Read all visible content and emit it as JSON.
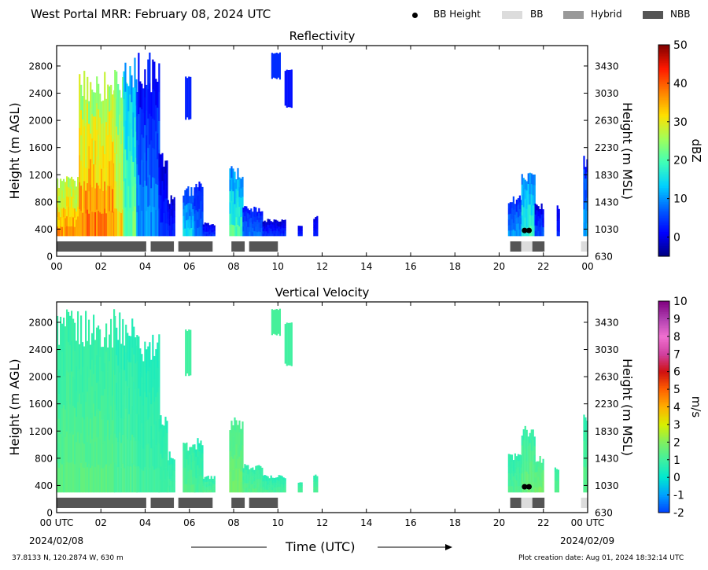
{
  "figure_title": "West Portal MRR:  February 08, 2024 UTC",
  "legend": [
    {
      "label": "BB Height",
      "marker": "dot",
      "color": "#000000"
    },
    {
      "label": "BB",
      "marker": "box",
      "color": "#dcdcdc"
    },
    {
      "label": "Hybrid",
      "marker": "box",
      "color": "#999999"
    },
    {
      "label": "NBB",
      "marker": "box",
      "color": "#555555"
    }
  ],
  "footer": {
    "location": "37.8133 N, 120.2874 W, 630 m",
    "creation": "Plot creation date: Aug 01, 2024 18:32:14 UTC",
    "time_axis_label": "Time (UTC)",
    "start_date": "2024/02/08",
    "end_date": "2024/02/09"
  },
  "chart_data": [
    {
      "type": "heatmap",
      "title": "Reflectivity",
      "ylabel": "Height (m AGL)",
      "y2label": "Height (m MSL)",
      "colorbar_label": "dBZ",
      "x_ticks": [
        "00",
        "02",
        "04",
        "06",
        "08",
        "10",
        "12",
        "14",
        "16",
        "18",
        "20",
        "22",
        "00"
      ],
      "xlim_hours": [
        0,
        24
      ],
      "y_ticks": [
        0,
        400,
        800,
        1200,
        1600,
        2000,
        2400,
        2800
      ],
      "y2_ticks": [
        630,
        1030,
        1430,
        1830,
        2230,
        2630,
        3030,
        3430
      ],
      "ylim": [
        0,
        3100
      ],
      "colorbar_ticks": [
        0,
        10,
        20,
        30,
        40,
        50
      ],
      "colorbar_range": [
        -5,
        50
      ],
      "colormap": [
        "#00007f",
        "#0000ff",
        "#0060ff",
        "#00d0ff",
        "#40ffb8",
        "#a0ff5a",
        "#ffe000",
        "#ff8000",
        "#ff1800",
        "#7f0000"
      ],
      "echo_regions": [
        {
          "start_h": 0.0,
          "end_h": 1.0,
          "top_m": 1180,
          "dbz_low": 26,
          "dbz_high": 36
        },
        {
          "start_h": 1.0,
          "end_h": 2.6,
          "top_m": 2780,
          "dbz_low": 26,
          "dbz_high": 38
        },
        {
          "start_h": 2.6,
          "end_h": 3.1,
          "top_m": 2780,
          "dbz_low": 22,
          "dbz_high": 32
        },
        {
          "start_h": 3.0,
          "end_h": 3.6,
          "top_m": 3000,
          "dbz_low": 12,
          "dbz_high": 22
        },
        {
          "start_h": 3.6,
          "end_h": 4.6,
          "top_m": 3000,
          "dbz_low": 2,
          "dbz_high": 10
        },
        {
          "start_h": 4.6,
          "end_h": 5.0,
          "top_m": 1550,
          "dbz_low": -1,
          "dbz_high": 4
        },
        {
          "start_h": 5.0,
          "end_h": 5.3,
          "top_m": 900,
          "dbz_low": -1,
          "dbz_high": 3
        },
        {
          "start_h": 5.7,
          "end_h": 6.2,
          "top_m": 1050,
          "dbz_low": 6,
          "dbz_high": 14
        },
        {
          "start_h": 6.2,
          "end_h": 6.6,
          "top_m": 1100,
          "dbz_low": 3,
          "dbz_high": 8
        },
        {
          "start_h": 6.6,
          "end_h": 7.1,
          "top_m": 500,
          "dbz_low": 0,
          "dbz_high": 4
        },
        {
          "start_h": 7.8,
          "end_h": 8.4,
          "top_m": 1350,
          "dbz_low": 10,
          "dbz_high": 20
        },
        {
          "start_h": 8.4,
          "end_h": 9.3,
          "top_m": 750,
          "dbz_low": 3,
          "dbz_high": 8
        },
        {
          "start_h": 9.3,
          "end_h": 10.3,
          "top_m": 560,
          "dbz_low": -1,
          "dbz_high": 4
        },
        {
          "start_h": 10.9,
          "end_h": 11.1,
          "top_m": 460,
          "dbz_low": 0,
          "dbz_high": 3
        },
        {
          "start_h": 11.6,
          "end_h": 11.75,
          "top_m": 600,
          "dbz_low": 0,
          "dbz_high": 3
        },
        {
          "start_h": 20.4,
          "end_h": 21.0,
          "top_m": 900,
          "dbz_low": 4,
          "dbz_high": 10
        },
        {
          "start_h": 21.0,
          "end_h": 21.6,
          "top_m": 1300,
          "dbz_low": 10,
          "dbz_high": 18
        },
        {
          "start_h": 21.6,
          "end_h": 22.0,
          "top_m": 800,
          "dbz_low": 0,
          "dbz_high": 6
        },
        {
          "start_h": 22.6,
          "end_h": 22.7,
          "top_m": 800,
          "dbz_low": 0,
          "dbz_high": 3
        },
        {
          "start_h": 23.8,
          "end_h": 24.0,
          "top_m": 1500,
          "dbz_low": 4,
          "dbz_high": 12
        }
      ],
      "upper_echoes": [
        {
          "start_h": 5.8,
          "end_h": 6.05,
          "bottom_m": 2000,
          "top_m": 2650,
          "dbz": 3
        },
        {
          "start_h": 9.7,
          "end_h": 10.1,
          "bottom_m": 2600,
          "top_m": 3000,
          "dbz": 4
        },
        {
          "start_h": 10.3,
          "end_h": 10.6,
          "bottom_m": 2180,
          "top_m": 2750,
          "dbz": 2
        }
      ],
      "bb_height_points": [
        {
          "hour": 21.15,
          "height_m": 380
        },
        {
          "hour": 21.35,
          "height_m": 380
        }
      ],
      "bb_class_segments": [
        {
          "start_h": 0.0,
          "end_h": 4.05,
          "class": "NBB"
        },
        {
          "start_h": 4.25,
          "end_h": 5.3,
          "class": "NBB"
        },
        {
          "start_h": 5.5,
          "end_h": 7.05,
          "class": "NBB"
        },
        {
          "start_h": 7.9,
          "end_h": 8.5,
          "class": "NBB"
        },
        {
          "start_h": 8.7,
          "end_h": 10.0,
          "class": "NBB"
        },
        {
          "start_h": 20.5,
          "end_h": 21.0,
          "class": "NBB"
        },
        {
          "start_h": 21.0,
          "end_h": 21.5,
          "class": "BB"
        },
        {
          "start_h": 21.5,
          "end_h": 22.05,
          "class": "NBB"
        },
        {
          "start_h": 23.7,
          "end_h": 24.0,
          "class": "BB"
        }
      ]
    },
    {
      "type": "heatmap",
      "title": "Vertical Velocity",
      "ylabel": "Height (m AGL)",
      "y2label": "Height (m MSL)",
      "xlabel": "Time (UTC)",
      "colorbar_label": "m/s",
      "x_ticks": [
        "00 UTC",
        "02",
        "04",
        "06",
        "08",
        "10",
        "12",
        "14",
        "16",
        "18",
        "20",
        "22",
        "00 UTC"
      ],
      "xlim_hours": [
        0,
        24
      ],
      "y_ticks": [
        0,
        400,
        800,
        1200,
        1600,
        2000,
        2400,
        2800
      ],
      "y2_ticks": [
        630,
        1030,
        1430,
        1830,
        2230,
        2630,
        3030,
        3430
      ],
      "ylim": [
        0,
        3100
      ],
      "colorbar_ticks": [
        -2,
        -1,
        0,
        1,
        2,
        3,
        4,
        5,
        6,
        7,
        8,
        9,
        10
      ],
      "colorbar_range": [
        -2,
        10
      ],
      "colormap": [
        "#0040ff",
        "#00a0ff",
        "#00e8d0",
        "#40f0a0",
        "#80f060",
        "#d8f000",
        "#ffb000",
        "#ff6000",
        "#d01010",
        "#d040a0",
        "#f070d0",
        "#b040b0",
        "#800080"
      ],
      "echo_regions": [
        {
          "start_h": 0.0,
          "end_h": 2.6,
          "top_m": 3000,
          "v_low": 0.8,
          "v_high": 1.4
        },
        {
          "start_h": 2.6,
          "end_h": 3.6,
          "top_m": 3000,
          "v_low": 0.6,
          "v_high": 1.2
        },
        {
          "start_h": 3.6,
          "end_h": 4.6,
          "top_m": 2650,
          "v_low": 0.5,
          "v_high": 1.0
        },
        {
          "start_h": 4.6,
          "end_h": 5.0,
          "top_m": 1500,
          "v_low": 0.6,
          "v_high": 1.0
        },
        {
          "start_h": 5.0,
          "end_h": 5.3,
          "top_m": 900,
          "v_low": 0.6,
          "v_high": 1.0
        },
        {
          "start_h": 5.7,
          "end_h": 6.2,
          "top_m": 1050,
          "v_low": 0.8,
          "v_high": 1.3
        },
        {
          "start_h": 6.2,
          "end_h": 6.6,
          "top_m": 1100,
          "v_low": 0.6,
          "v_high": 1.1
        },
        {
          "start_h": 6.6,
          "end_h": 7.1,
          "top_m": 550,
          "v_low": 0.7,
          "v_high": 1.2
        },
        {
          "start_h": 7.8,
          "end_h": 8.4,
          "top_m": 1400,
          "v_low": 1.2,
          "v_high": 1.8
        },
        {
          "start_h": 8.4,
          "end_h": 9.3,
          "top_m": 720,
          "v_low": 0.8,
          "v_high": 1.3
        },
        {
          "start_h": 9.3,
          "end_h": 10.3,
          "top_m": 560,
          "v_low": 0.6,
          "v_high": 1.1
        },
        {
          "start_h": 10.9,
          "end_h": 11.1,
          "top_m": 450,
          "v_low": 0.8,
          "v_high": 1.2
        },
        {
          "start_h": 11.6,
          "end_h": 11.75,
          "top_m": 600,
          "v_low": 0.8,
          "v_high": 1.2
        },
        {
          "start_h": 20.4,
          "end_h": 21.0,
          "top_m": 900,
          "v_low": 0.7,
          "v_high": 1.2
        },
        {
          "start_h": 21.0,
          "end_h": 21.6,
          "top_m": 1300,
          "v_low": 0.9,
          "v_high": 1.6
        },
        {
          "start_h": 21.6,
          "end_h": 22.0,
          "top_m": 850,
          "v_low": 1.1,
          "v_high": 1.8
        },
        {
          "start_h": 22.5,
          "end_h": 22.7,
          "top_m": 700,
          "v_low": 0.9,
          "v_high": 1.4
        },
        {
          "start_h": 23.8,
          "end_h": 24.0,
          "top_m": 1500,
          "v_low": 0.8,
          "v_high": 1.4
        }
      ],
      "upper_echoes": [
        {
          "start_h": 5.8,
          "end_h": 6.05,
          "bottom_m": 2000,
          "top_m": 2700,
          "v": 1.0
        },
        {
          "start_h": 9.7,
          "end_h": 10.1,
          "bottom_m": 2600,
          "top_m": 3000,
          "v": 1.1
        },
        {
          "start_h": 10.3,
          "end_h": 10.6,
          "bottom_m": 2150,
          "top_m": 2800,
          "v": 1.0
        }
      ],
      "bb_height_points": [
        {
          "hour": 21.15,
          "height_m": 380
        },
        {
          "hour": 21.35,
          "height_m": 380
        }
      ],
      "bb_class_segments": [
        {
          "start_h": 0.0,
          "end_h": 4.05,
          "class": "NBB"
        },
        {
          "start_h": 4.25,
          "end_h": 5.3,
          "class": "NBB"
        },
        {
          "start_h": 5.5,
          "end_h": 7.05,
          "class": "NBB"
        },
        {
          "start_h": 7.9,
          "end_h": 8.5,
          "class": "NBB"
        },
        {
          "start_h": 8.7,
          "end_h": 10.0,
          "class": "NBB"
        },
        {
          "start_h": 20.5,
          "end_h": 21.0,
          "class": "NBB"
        },
        {
          "start_h": 21.0,
          "end_h": 21.5,
          "class": "BB"
        },
        {
          "start_h": 21.5,
          "end_h": 22.05,
          "class": "NBB"
        },
        {
          "start_h": 23.7,
          "end_h": 24.0,
          "class": "BB"
        }
      ]
    }
  ]
}
